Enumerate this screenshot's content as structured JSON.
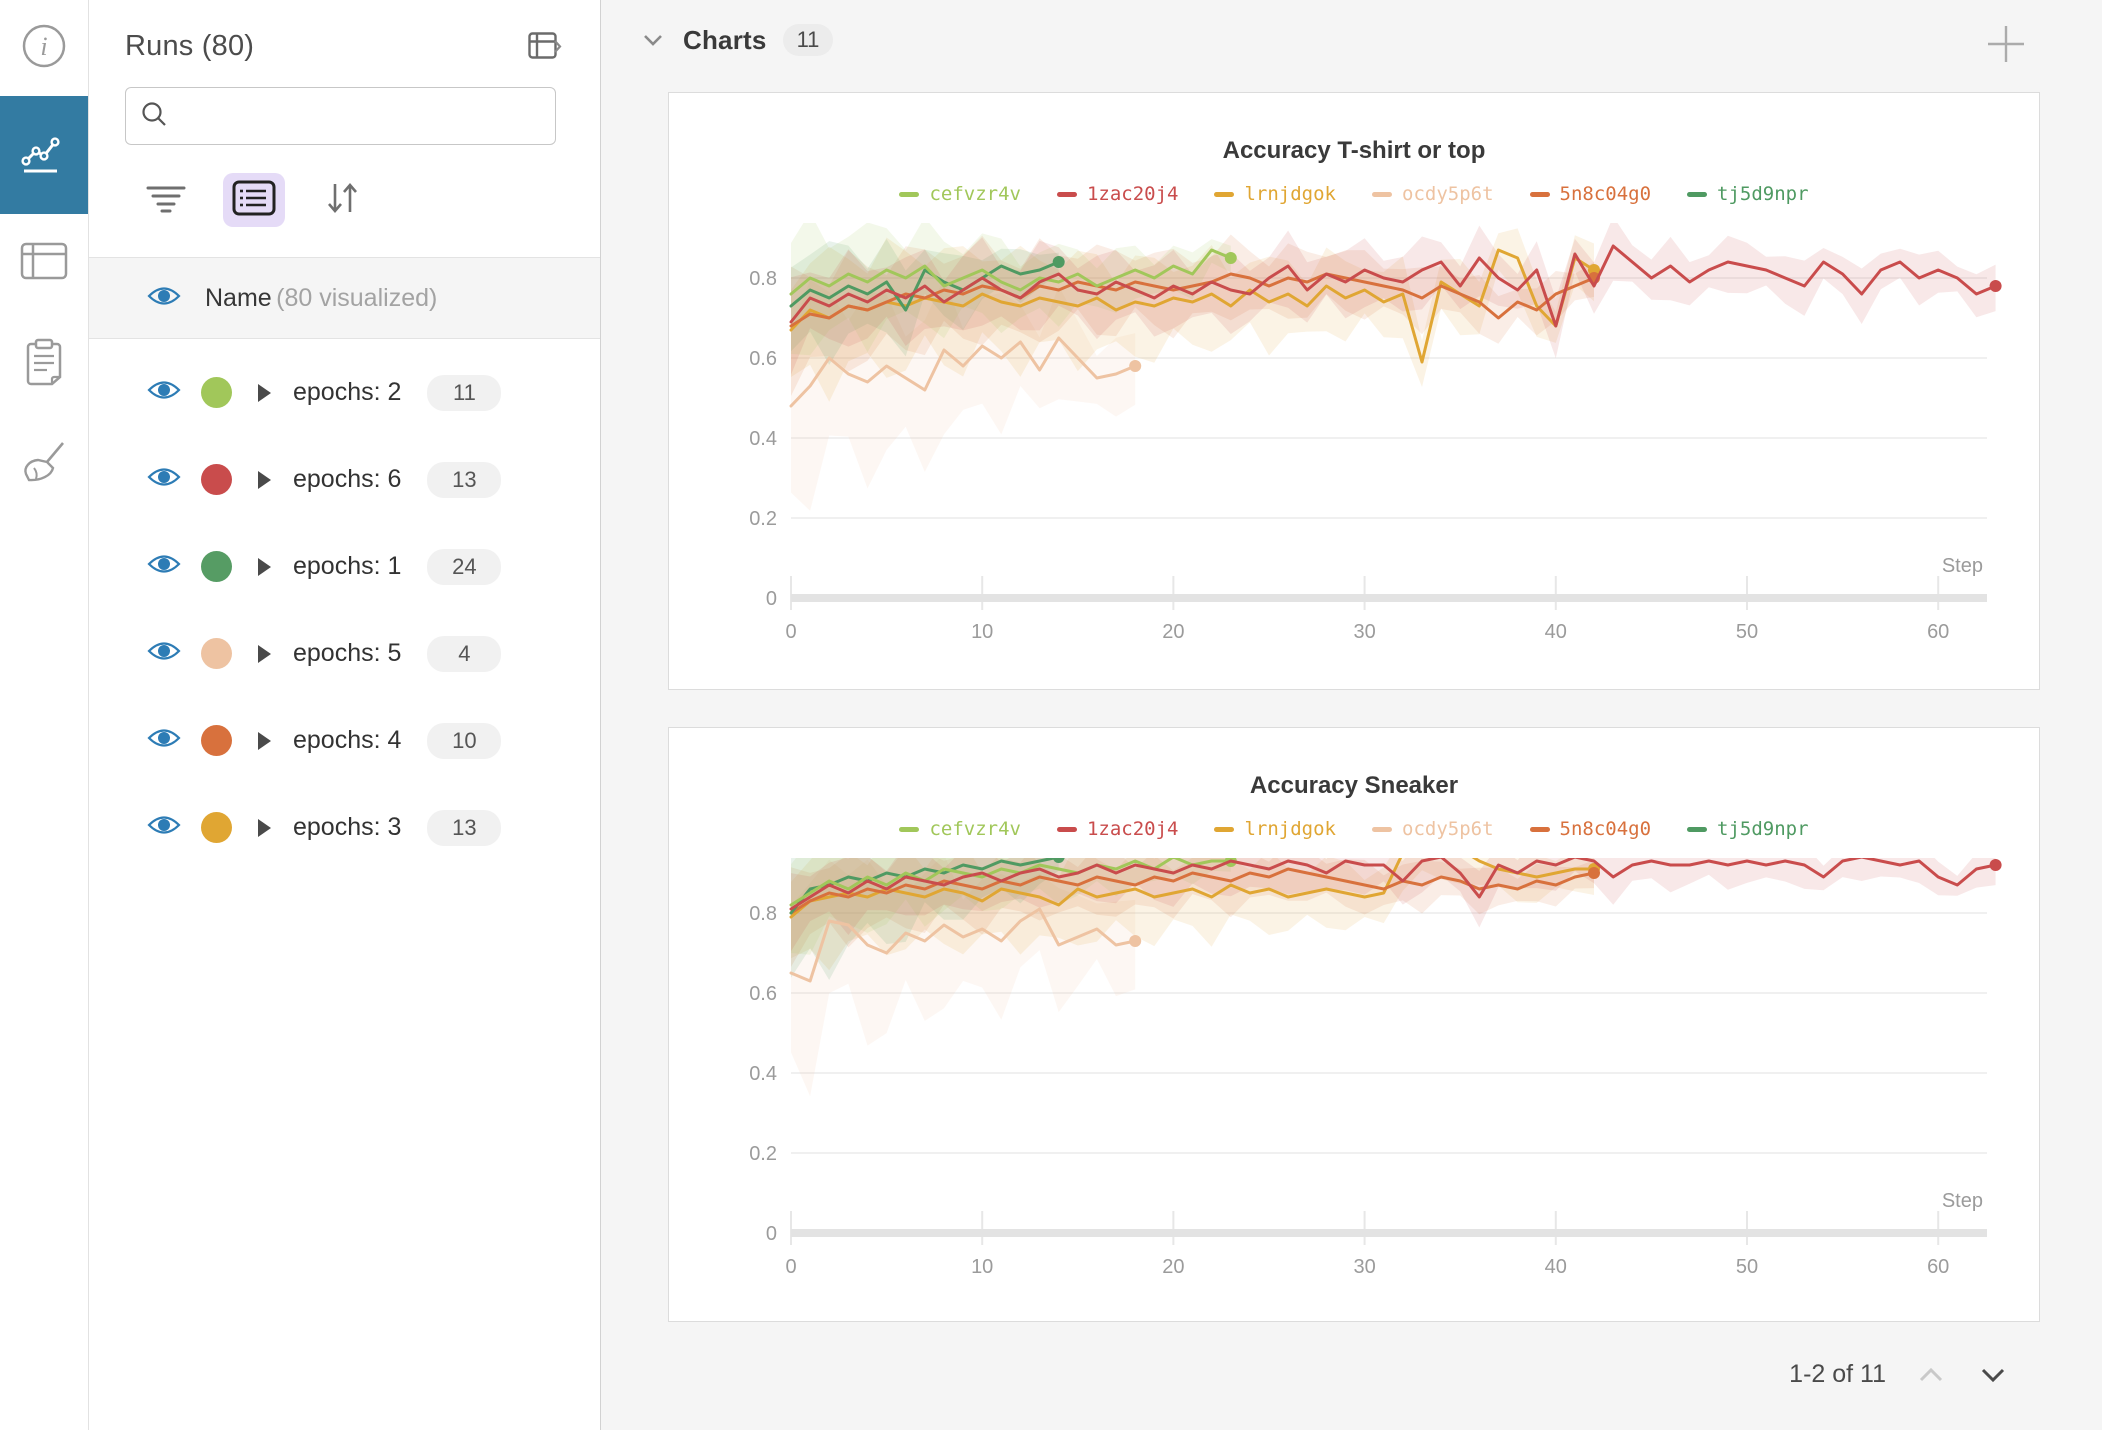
{
  "rail": {
    "items": [
      {
        "icon": "info-icon",
        "active": false
      },
      {
        "icon": "line-chart-icon",
        "active": true
      },
      {
        "icon": "table-icon",
        "active": false
      },
      {
        "icon": "notes-icon",
        "active": false
      },
      {
        "icon": "sweep-broom-icon",
        "active": false
      }
    ]
  },
  "sidebar": {
    "title": "Runs (80)",
    "search": {
      "value": "",
      "placeholder": ""
    },
    "header_row": {
      "name": "Name",
      "subtext": "(80 visualized)"
    },
    "groups": [
      {
        "label": "epochs: 2",
        "count": "11",
        "color": "#a1c75a"
      },
      {
        "label": "epochs: 6",
        "count": "13",
        "color": "#c94c4c"
      },
      {
        "label": "epochs: 1",
        "count": "24",
        "color": "#569c64"
      },
      {
        "label": "epochs: 5",
        "count": "4",
        "color": "#eec3a2"
      },
      {
        "label": "epochs: 4",
        "count": "10",
        "color": "#d8713d"
      },
      {
        "label": "epochs: 3",
        "count": "13",
        "color": "#e0a633"
      }
    ]
  },
  "main": {
    "header": {
      "label": "Charts",
      "count": "11"
    },
    "pagination": {
      "label": "1-2 of 11"
    }
  },
  "colors": {
    "accent_blue": "#337ba2",
    "eye_blue": "#2d7cb5",
    "selected_lavender": "#e5dbf7"
  },
  "chart_data": [
    {
      "type": "line",
      "title": "Accuracy T-shirt or top",
      "xlabel": "Step",
      "xticks": [
        0,
        10,
        20,
        30,
        40,
        50,
        60
      ],
      "yticks": [
        0,
        0.2,
        0.4,
        0.6,
        0.8
      ],
      "ylim": [
        0,
        1
      ],
      "xlim": [
        0,
        63
      ],
      "legend_position": "top",
      "grid": true,
      "series": [
        {
          "name": "cefvzr4v",
          "color": "#a1c75a",
          "band": [
            0.15,
            0.04
          ],
          "values": [
            0.76,
            0.8,
            0.78,
            0.81,
            0.79,
            0.82,
            0.8,
            0.83,
            0.78,
            0.8,
            0.82,
            0.79,
            0.77,
            0.8,
            0.79,
            0.81,
            0.78,
            0.8,
            0.82,
            0.8,
            0.83,
            0.81,
            0.87,
            0.85
          ]
        },
        {
          "name": "1zac20j4",
          "color": "#c94c4c",
          "band": [
            0.1,
            0.05
          ],
          "values": [
            0.69,
            0.75,
            0.73,
            0.76,
            0.74,
            0.77,
            0.75,
            0.78,
            0.74,
            0.77,
            0.8,
            0.77,
            0.75,
            0.79,
            0.81,
            0.77,
            0.76,
            0.79,
            0.77,
            0.75,
            0.78,
            0.76,
            0.79,
            0.77,
            0.76,
            0.8,
            0.83,
            0.77,
            0.81,
            0.79,
            0.82,
            0.8,
            0.79,
            0.82,
            0.84,
            0.78,
            0.85,
            0.8,
            0.77,
            0.82,
            0.68,
            0.86,
            0.78,
            0.88,
            0.84,
            0.8,
            0.83,
            0.79,
            0.82,
            0.84,
            0.83,
            0.82,
            0.8,
            0.78,
            0.84,
            0.81,
            0.76,
            0.82,
            0.84,
            0.8,
            0.82,
            0.8,
            0.76,
            0.78
          ]
        },
        {
          "name": "lrnjdgok",
          "color": "#e0a633",
          "band": [
            0.16,
            0.06
          ],
          "values": [
            0.67,
            0.72,
            0.7,
            0.73,
            0.72,
            0.74,
            0.73,
            0.75,
            0.74,
            0.73,
            0.76,
            0.74,
            0.73,
            0.75,
            0.74,
            0.73,
            0.75,
            0.72,
            0.74,
            0.73,
            0.75,
            0.74,
            0.76,
            0.73,
            0.77,
            0.74,
            0.76,
            0.73,
            0.78,
            0.75,
            0.77,
            0.74,
            0.76,
            0.59,
            0.79,
            0.76,
            0.73,
            0.87,
            0.85,
            0.73,
            0.68,
            0.85,
            0.82
          ]
        },
        {
          "name": "ocdy5p6t",
          "color": "#eec3a2",
          "band": [
            0.24,
            0.08
          ],
          "values": [
            0.48,
            0.53,
            0.6,
            0.56,
            0.54,
            0.58,
            0.55,
            0.52,
            0.62,
            0.58,
            0.63,
            0.6,
            0.64,
            0.57,
            0.65,
            0.6,
            0.55,
            0.56,
            0.58
          ]
        },
        {
          "name": "5n8c04g0",
          "color": "#d8713d",
          "band": [
            0.13,
            0.05
          ],
          "values": [
            0.68,
            0.71,
            0.7,
            0.73,
            0.72,
            0.74,
            0.76,
            0.75,
            0.77,
            0.76,
            0.78,
            0.77,
            0.75,
            0.78,
            0.77,
            0.79,
            0.78,
            0.77,
            0.79,
            0.78,
            0.77,
            0.78,
            0.79,
            0.81,
            0.8,
            0.78,
            0.8,
            0.79,
            0.81,
            0.8,
            0.79,
            0.78,
            0.77,
            0.75,
            0.78,
            0.76,
            0.74,
            0.7,
            0.74,
            0.72,
            0.76,
            0.78,
            0.8
          ]
        },
        {
          "name": "tj5d9npr",
          "color": "#4f9a62",
          "band": [
            0.14,
            0.04
          ],
          "values": [
            0.73,
            0.77,
            0.75,
            0.78,
            0.76,
            0.79,
            0.72,
            0.82,
            0.79,
            0.77,
            0.8,
            0.83,
            0.81,
            0.82,
            0.84
          ]
        }
      ]
    },
    {
      "type": "line",
      "title": "Accuracy Sneaker",
      "xlabel": "Step",
      "xticks": [
        0,
        10,
        20,
        30,
        40,
        50,
        60
      ],
      "yticks": [
        0,
        0.2,
        0.4,
        0.6,
        0.8
      ],
      "ylim": [
        0,
        1
      ],
      "xlim": [
        0,
        63
      ],
      "legend_position": "top",
      "grid": true,
      "series": [
        {
          "name": "cefvzr4v",
          "color": "#a1c75a",
          "band": [
            0.12,
            0.03
          ],
          "values": [
            0.82,
            0.85,
            0.88,
            0.86,
            0.89,
            0.87,
            0.9,
            0.88,
            0.91,
            0.9,
            0.89,
            0.91,
            0.9,
            0.92,
            0.91,
            0.9,
            0.92,
            0.91,
            0.93,
            0.91,
            0.94,
            0.92,
            0.93,
            0.93
          ]
        },
        {
          "name": "1zac20j4",
          "color": "#c94c4c",
          "band": [
            0.08,
            0.04
          ],
          "values": [
            0.81,
            0.84,
            0.87,
            0.85,
            0.88,
            0.86,
            0.89,
            0.88,
            0.87,
            0.89,
            0.9,
            0.88,
            0.9,
            0.91,
            0.89,
            0.9,
            0.92,
            0.9,
            0.92,
            0.91,
            0.9,
            0.92,
            0.91,
            0.93,
            0.92,
            0.91,
            0.93,
            0.92,
            0.9,
            0.93,
            0.92,
            0.92,
            0.88,
            0.93,
            0.94,
            0.9,
            0.84,
            0.92,
            0.9,
            0.93,
            0.92,
            0.94,
            0.93,
            0.89,
            0.92,
            0.93,
            0.92,
            0.92,
            0.93,
            0.92,
            0.93,
            0.92,
            0.93,
            0.92,
            0.89,
            0.93,
            0.94,
            0.93,
            0.92,
            0.93,
            0.89,
            0.87,
            0.91,
            0.92
          ]
        },
        {
          "name": "lrnjdgok",
          "color": "#e0a633",
          "band": [
            0.14,
            0.05
          ],
          "values": [
            0.79,
            0.83,
            0.84,
            0.85,
            0.84,
            0.86,
            0.85,
            0.84,
            0.86,
            0.85,
            0.83,
            0.86,
            0.85,
            0.84,
            0.82,
            0.86,
            0.84,
            0.85,
            0.86,
            0.84,
            0.85,
            0.86,
            0.84,
            0.87,
            0.85,
            0.86,
            0.84,
            0.85,
            0.86,
            0.85,
            0.84,
            0.85,
            0.95,
            0.96,
            0.94,
            0.96,
            0.93,
            0.91,
            0.9,
            0.89,
            0.9,
            0.91,
            0.91
          ]
        },
        {
          "name": "ocdy5p6t",
          "color": "#eec3a2",
          "band": [
            0.22,
            0.1
          ],
          "values": [
            0.65,
            0.63,
            0.78,
            0.77,
            0.72,
            0.7,
            0.75,
            0.73,
            0.77,
            0.74,
            0.76,
            0.73,
            0.78,
            0.81,
            0.72,
            0.74,
            0.76,
            0.72,
            0.73
          ]
        },
        {
          "name": "5n8c04g0",
          "color": "#d8713d",
          "band": [
            0.1,
            0.04
          ],
          "values": [
            0.8,
            0.83,
            0.85,
            0.84,
            0.86,
            0.85,
            0.87,
            0.86,
            0.88,
            0.87,
            0.86,
            0.88,
            0.87,
            0.89,
            0.88,
            0.87,
            0.89,
            0.88,
            0.87,
            0.89,
            0.88,
            0.9,
            0.89,
            0.88,
            0.9,
            0.89,
            0.91,
            0.9,
            0.89,
            0.88,
            0.87,
            0.86,
            0.88,
            0.87,
            0.89,
            0.88,
            0.86,
            0.87,
            0.86,
            0.88,
            0.87,
            0.89,
            0.9
          ]
        },
        {
          "name": "tj5d9npr",
          "color": "#4f9a62",
          "band": [
            0.2,
            0.05
          ],
          "values": [
            0.8,
            0.86,
            0.87,
            0.89,
            0.88,
            0.9,
            0.89,
            0.91,
            0.9,
            0.92,
            0.91,
            0.93,
            0.92,
            0.93,
            0.94
          ]
        }
      ]
    }
  ]
}
